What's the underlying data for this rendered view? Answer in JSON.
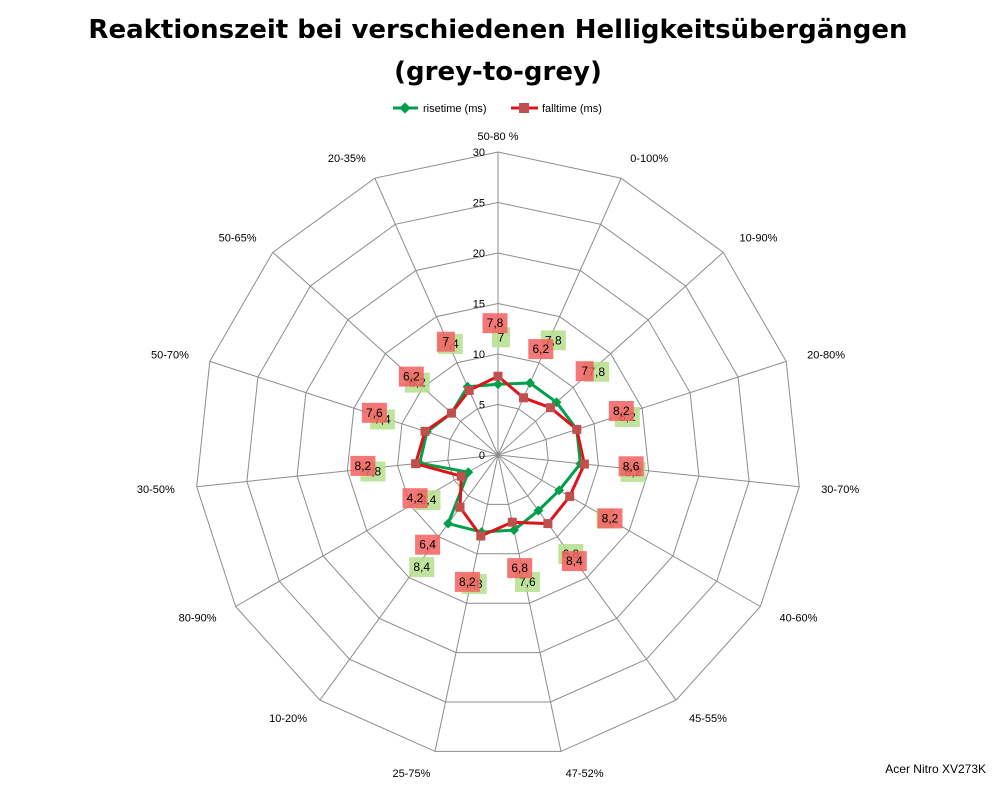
{
  "chart_data": {
    "type": "radar",
    "title_line1": "Reaktionszeit bei verschiedenen Helligkeitsübergängen",
    "title_line2": "(grey-to-grey)",
    "categories": [
      "50-80 %",
      "0-100%",
      "10-90%",
      "20-80%",
      "30-70%",
      "40-60%",
      "45-55%",
      "47-52%",
      "25-75%",
      "10-20%",
      "80-90%",
      "30-50%",
      "50-70%",
      "50-65%",
      "20-35%"
    ],
    "r_ticks": [
      "0",
      "5",
      "10",
      "15",
      "20",
      "25",
      "30"
    ],
    "r_max": 30,
    "grid": true,
    "legend_position": "top",
    "series": [
      {
        "name": "risetime (ms)",
        "color": "#00a04a",
        "label_bg": "#b5df8c",
        "values": [
          7,
          7.8,
          7.8,
          8.2,
          8.2,
          7,
          6.8,
          7.6,
          7.8,
          8.4,
          3.4,
          7.8,
          7.4,
          6.2,
          7.4
        ],
        "labels": [
          "7",
          "7,8",
          "7,8",
          "8,2",
          "8,2",
          "7",
          "6,8",
          "7,6",
          "7,8",
          "8,4",
          "3,4",
          "7,8",
          "7,4",
          "6,2",
          "7,4"
        ]
      },
      {
        "name": "falltime (ms)",
        "color": "#e0121a",
        "label_bg": "#f26060",
        "values": [
          7.8,
          6.2,
          7,
          8.2,
          8.6,
          8.2,
          8.4,
          6.8,
          8.2,
          6.4,
          4.2,
          8.2,
          7.6,
          6.2,
          7
        ],
        "labels": [
          "7,8",
          "6,2",
          "7",
          "8,2",
          "8,6",
          "8,2",
          "8,4",
          "6,8",
          "8,2",
          "6,4",
          "4,2",
          "8,2",
          "7,6",
          "6,2",
          "7"
        ]
      }
    ]
  },
  "credit": "Acer Nitro XV273K"
}
